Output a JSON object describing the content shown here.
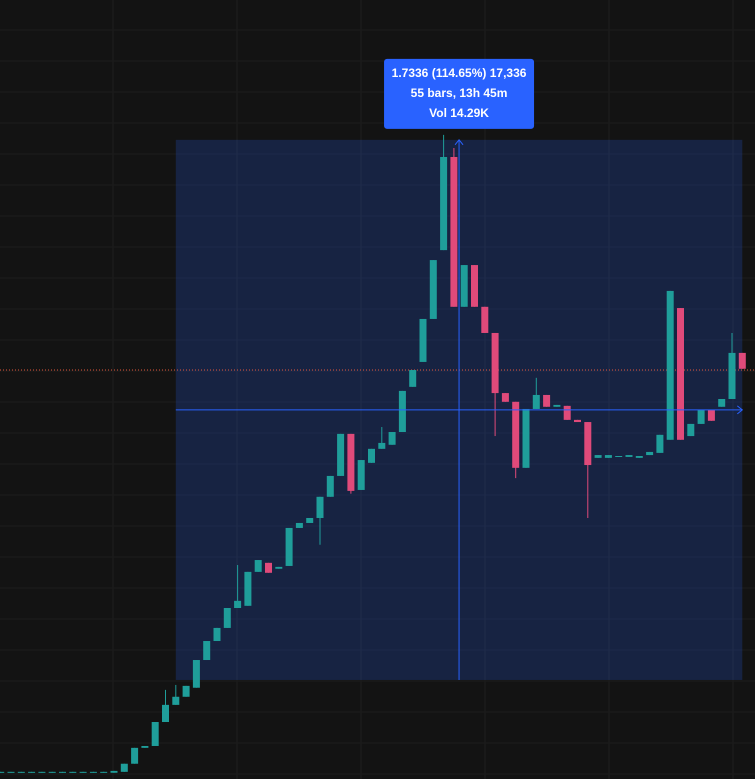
{
  "chart_data": {
    "type": "candlestick",
    "up_color": "#1f9e9a",
    "down_color": "#e04a7a",
    "ylim": [
      1.194,
      3.695
    ],
    "candles": [
      [
        1.214,
        1.217,
        1.214,
        1.217
      ],
      [
        1.214,
        1.217,
        1.214,
        1.217
      ],
      [
        1.214,
        1.217,
        1.214,
        1.217
      ],
      [
        1.214,
        1.217,
        1.214,
        1.217
      ],
      [
        1.214,
        1.217,
        1.214,
        1.217
      ],
      [
        1.214,
        1.217,
        1.214,
        1.217
      ],
      [
        1.214,
        1.217,
        1.214,
        1.217
      ],
      [
        1.214,
        1.217,
        1.214,
        1.217
      ],
      [
        1.214,
        1.217,
        1.214,
        1.217
      ],
      [
        1.214,
        1.217,
        1.214,
        1.217
      ],
      [
        1.214,
        1.217,
        1.214,
        1.217
      ],
      [
        1.214,
        1.22,
        1.214,
        1.22
      ],
      [
        1.217,
        1.243,
        1.217,
        1.243
      ],
      [
        1.243,
        1.294,
        1.243,
        1.294
      ],
      [
        1.294,
        1.3,
        1.294,
        1.3
      ],
      [
        1.3,
        1.377,
        1.3,
        1.377
      ],
      [
        1.377,
        1.48,
        1.377,
        1.432
      ],
      [
        1.432,
        1.496,
        1.432,
        1.458
      ],
      [
        1.458,
        1.493,
        1.458,
        1.493
      ],
      [
        1.487,
        1.576,
        1.487,
        1.576
      ],
      [
        1.576,
        1.637,
        1.576,
        1.637
      ],
      [
        1.637,
        1.679,
        1.637,
        1.679
      ],
      [
        1.679,
        1.743,
        1.679,
        1.743
      ],
      [
        1.743,
        1.881,
        1.743,
        1.766
      ],
      [
        1.75,
        1.859,
        1.75,
        1.859
      ],
      [
        1.859,
        1.897,
        1.859,
        1.897
      ],
      [
        1.888,
        1.888,
        1.856,
        1.856
      ],
      [
        1.869,
        1.875,
        1.869,
        1.875
      ],
      [
        1.878,
        2.0,
        1.878,
        2.0
      ],
      [
        2.0,
        2.016,
        2.0,
        2.016
      ],
      [
        2.016,
        2.032,
        2.016,
        2.032
      ],
      [
        2.032,
        2.1,
        1.946,
        2.1
      ],
      [
        2.1,
        2.167,
        2.1,
        2.167
      ],
      [
        2.167,
        2.302,
        2.167,
        2.302
      ],
      [
        2.302,
        2.302,
        2.11,
        2.119
      ],
      [
        2.122,
        2.218,
        2.122,
        2.218
      ],
      [
        2.209,
        2.254,
        2.209,
        2.254
      ],
      [
        2.254,
        2.324,
        2.254,
        2.273
      ],
      [
        2.267,
        2.308,
        2.267,
        2.308
      ],
      [
        2.308,
        2.44,
        2.308,
        2.44
      ],
      [
        2.453,
        2.507,
        2.453,
        2.507
      ],
      [
        2.533,
        2.671,
        2.533,
        2.671
      ],
      [
        2.671,
        2.86,
        2.671,
        2.86
      ],
      [
        2.892,
        3.262,
        2.892,
        3.191
      ],
      [
        3.191,
        3.22,
        2.71,
        2.71
      ],
      [
        2.71,
        2.844,
        2.71,
        2.844
      ],
      [
        2.844,
        2.844,
        2.71,
        2.71
      ],
      [
        2.71,
        2.71,
        2.626,
        2.626
      ],
      [
        2.626,
        2.626,
        2.295,
        2.433
      ],
      [
        2.433,
        2.433,
        2.405,
        2.405
      ],
      [
        2.405,
        2.405,
        2.16,
        2.193
      ],
      [
        2.193,
        2.382,
        2.193,
        2.382
      ],
      [
        2.382,
        2.482,
        2.382,
        2.427
      ],
      [
        2.427,
        2.427,
        2.389,
        2.389
      ],
      [
        2.389,
        2.395,
        2.389,
        2.395
      ],
      [
        2.392,
        2.392,
        2.347,
        2.347
      ],
      [
        2.347,
        2.347,
        2.34,
        2.34
      ],
      [
        2.34,
        2.34,
        2.032,
        2.202
      ],
      [
        2.225,
        2.234,
        2.225,
        2.234
      ],
      [
        2.225,
        2.234,
        2.225,
        2.234
      ],
      [
        2.228,
        2.231,
        2.228,
        2.231
      ],
      [
        2.228,
        2.234,
        2.228,
        2.234
      ],
      [
        2.225,
        2.231,
        2.225,
        2.231
      ],
      [
        2.234,
        2.244,
        2.234,
        2.244
      ],
      [
        2.241,
        2.299,
        2.241,
        2.299
      ],
      [
        2.283,
        2.761,
        2.283,
        2.761
      ],
      [
        2.706,
        2.706,
        2.283,
        2.283
      ],
      [
        2.295,
        2.334,
        2.295,
        2.334
      ],
      [
        2.334,
        2.379,
        2.334,
        2.379
      ],
      [
        2.379,
        2.379,
        2.344,
        2.344
      ],
      [
        2.389,
        2.414,
        2.389,
        2.414
      ],
      [
        2.414,
        2.626,
        2.414,
        2.562
      ],
      [
        2.562,
        2.562,
        2.511,
        2.511
      ]
    ],
    "price_line": {
      "value": 2.507,
      "color": "#e0563a"
    },
    "measure": {
      "from_index": 17,
      "to_index": 72,
      "from_price": 1.512,
      "to_price": 3.246,
      "color": "#2962ff",
      "lines": [
        "1.7336 (114.65%) 17,336",
        "55 bars, 13h 45m",
        "Vol 14.29K"
      ]
    }
  }
}
